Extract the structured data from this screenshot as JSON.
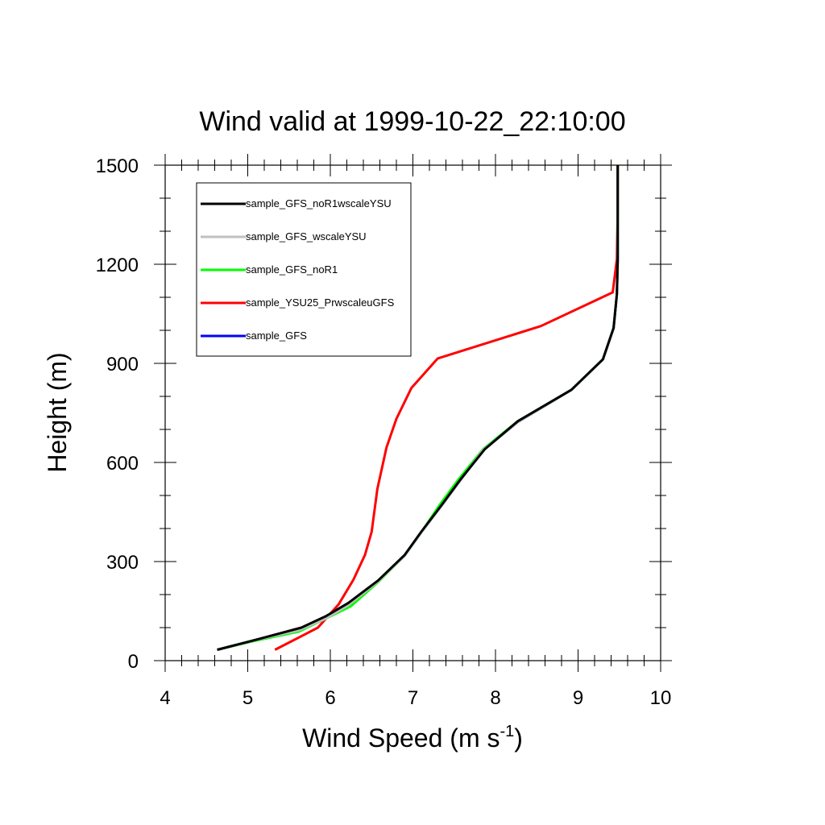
{
  "chart_data": {
    "type": "line",
    "title": "Wind valid at 1999-10-22_22:10:00",
    "xlabel": "Wind Speed (m s",
    "xlabel_sup": "-1",
    "xlabel_end": ")",
    "ylabel": "Height (m)",
    "xlim": [
      4,
      10
    ],
    "ylim": [
      0,
      1500
    ],
    "xticks": [
      4,
      5,
      6,
      7,
      8,
      9,
      10
    ],
    "yticks": [
      0,
      300,
      600,
      900,
      1200,
      1500
    ],
    "grid": false,
    "legend_position": "top-left",
    "series": [
      {
        "name": "sample_GFS",
        "color": "#0000ff",
        "x": [
          4.63,
          5.05,
          5.62,
          5.95,
          6.22,
          6.58,
          6.9,
          7.1,
          7.35,
          7.58,
          7.85,
          8.27,
          8.92,
          9.3,
          9.43,
          9.47,
          9.48,
          9.48,
          9.48
        ],
        "y": [
          33,
          60,
          92,
          128,
          168,
          240,
          318,
          388,
          470,
          548,
          638,
          722,
          820,
          912,
          1007,
          1110,
          1215,
          1360,
          1500
        ]
      },
      {
        "name": "sample_YSU25_PrwscaleuGFS",
        "color": "#ff0000",
        "x": [
          5.33,
          5.85,
          6.1,
          6.28,
          6.42,
          6.5,
          6.57,
          6.68,
          6.8,
          6.98,
          7.3,
          8.55,
          9.42,
          9.47,
          9.48,
          9.48
        ],
        "y": [
          33,
          100,
          170,
          245,
          320,
          390,
          520,
          645,
          732,
          825,
          915,
          1013,
          1115,
          1215,
          1360,
          1500
        ]
      },
      {
        "name": "sample_GFS_noR1",
        "color": "#00ff00",
        "x": [
          4.63,
          5.05,
          5.62,
          5.95,
          6.25,
          6.58,
          6.9,
          7.1,
          7.32,
          7.55,
          7.85,
          8.27,
          8.92,
          9.3,
          9.43,
          9.47,
          9.48,
          9.48,
          9.48
        ],
        "y": [
          33,
          58,
          88,
          128,
          165,
          238,
          318,
          388,
          470,
          548,
          640,
          725,
          820,
          912,
          1007,
          1110,
          1215,
          1360,
          1500
        ]
      },
      {
        "name": "sample_GFS_wscaleYSU",
        "color": "#c0c0c0",
        "x": [
          4.63,
          5.05,
          5.62,
          5.95,
          6.22,
          6.58,
          6.9,
          7.1,
          7.35,
          7.58,
          7.85,
          8.27,
          8.92,
          9.3,
          9.43,
          9.47,
          9.48,
          9.48,
          9.48
        ],
        "y": [
          33,
          60,
          92,
          128,
          168,
          240,
          318,
          388,
          470,
          548,
          638,
          722,
          820,
          912,
          1007,
          1110,
          1215,
          1360,
          1500
        ]
      },
      {
        "name": "sample_GFS_noR1wscaleYSU",
        "color": "#000000",
        "x": [
          4.63,
          5.05,
          5.65,
          5.95,
          6.22,
          6.58,
          6.9,
          7.1,
          7.35,
          7.58,
          7.87,
          8.27,
          8.92,
          9.3,
          9.43,
          9.47,
          9.48,
          9.48,
          9.48
        ],
        "y": [
          33,
          60,
          100,
          135,
          175,
          243,
          320,
          390,
          472,
          550,
          640,
          725,
          820,
          912,
          1007,
          1110,
          1215,
          1360,
          1500
        ]
      }
    ],
    "legend_order": [
      "sample_GFS_noR1wscaleYSU",
      "sample_GFS_wscaleYSU",
      "sample_GFS_noR1",
      "sample_YSU25_PrwscaleuGFS",
      "sample_GFS"
    ]
  }
}
